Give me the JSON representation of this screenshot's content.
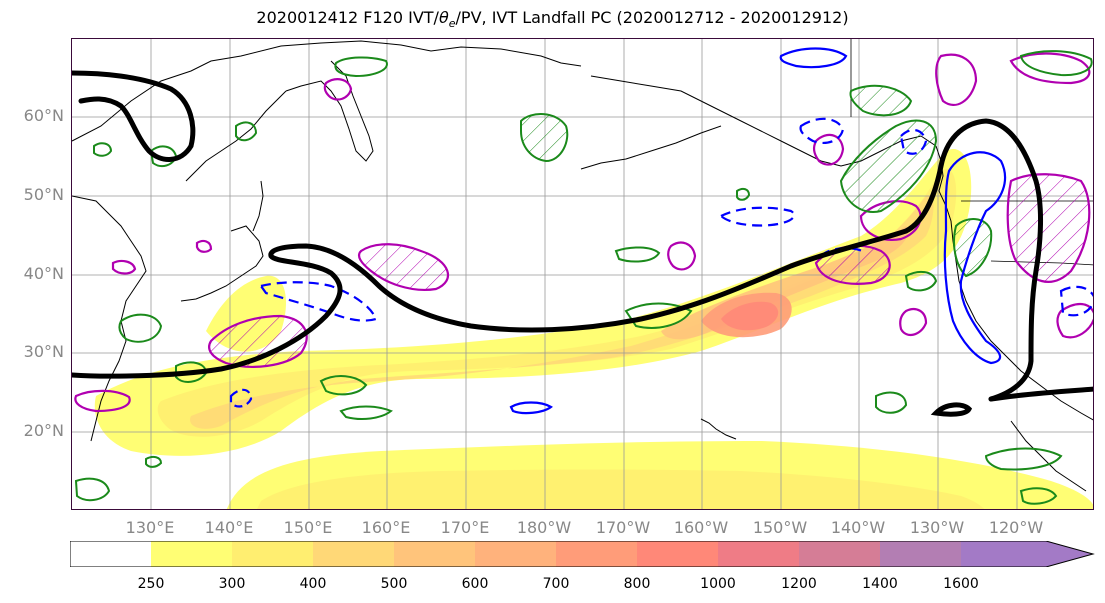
{
  "title": {
    "prefix": "2020012412 F120 IVT/",
    "theta": "θ",
    "sub": "e",
    "suffix": "/PV, IVT Landfall PC (2020012712 - 2020012912)"
  },
  "lat_labels": [
    "60°N",
    "50°N",
    "40°N",
    "30°N",
    "20°N"
  ],
  "lon_labels": [
    "130°E",
    "140°E",
    "150°E",
    "160°E",
    "170°E",
    "180°W",
    "170°W",
    "160°W",
    "150°W",
    "140°W",
    "130°W",
    "120°W"
  ],
  "colorbar": {
    "ticks": [
      "250",
      "300",
      "400",
      "500",
      "600",
      "700",
      "800",
      "1000",
      "1200",
      "1400",
      "1600"
    ],
    "colors": [
      "#ffffff",
      "#fffe74",
      "#ffee70",
      "#ffd877",
      "#ffc47b",
      "#ffb27c",
      "#ff9c79",
      "#ff8878",
      "#ef7c86",
      "#d57d96",
      "#b37eb3",
      "#a37ac6"
    ]
  },
  "contour_colors": {
    "ivt_landfall_pc": "#000000",
    "theta_e_positive": "#1b8a1b",
    "theta_e_negative": "#0000ff",
    "pv": "#b000b0"
  }
}
